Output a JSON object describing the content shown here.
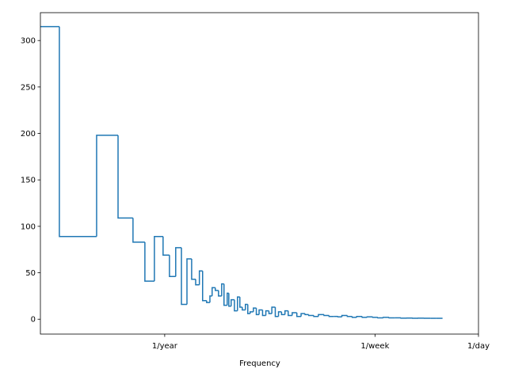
{
  "chart_data": {
    "type": "step",
    "xlabel": "Frequency",
    "color": "#1f77b4",
    "xscale": "log",
    "x": [
      0.0966,
      0.138,
      0.278,
      0.416,
      0.551,
      0.689,
      0.824,
      0.97,
      1.094,
      1.23,
      1.37,
      1.52,
      1.66,
      1.79,
      1.92,
      2.04,
      2.2,
      2.34,
      2.44,
      2.59,
      2.75,
      2.92,
      3.05,
      3.24,
      3.34,
      3.49,
      3.71,
      3.93,
      4.11,
      4.3,
      4.56,
      4.77,
      4.99,
      5.3,
      5.6,
      5.9,
      6.3,
      6.7,
      7.1,
      7.5,
      8.0,
      8.5,
      9.0,
      9.6,
      10.2,
      11,
      12,
      13,
      14,
      15,
      16.5,
      18,
      20,
      22,
      24,
      26,
      28,
      31,
      34,
      37,
      41,
      45,
      50,
      55,
      61,
      68,
      76,
      85,
      95,
      106,
      118,
      132,
      148,
      165,
      185.8
    ],
    "values": [
      315,
      89,
      198,
      109,
      83,
      41,
      89,
      69,
      46,
      77,
      16,
      65,
      43,
      37,
      52,
      20,
      18,
      25,
      34,
      31,
      25,
      38,
      15,
      28,
      14,
      21,
      9,
      24,
      13,
      10,
      16,
      6,
      8,
      12,
      5,
      10,
      4,
      9,
      6,
      13,
      3,
      8,
      5,
      9,
      4,
      7,
      3,
      6,
      5,
      4,
      3,
      5,
      4,
      3,
      3,
      2.5,
      4,
      3,
      2,
      3,
      2,
      2.5,
      2,
      1.5,
      2,
      1.5,
      1.5,
      1.2,
      1.3,
      1,
      1.2,
      1,
      1,
      1,
      1
    ],
    "xlim": [
      0.0966,
      365.2524
    ],
    "ylim": [
      -16,
      330
    ],
    "xticks": [
      {
        "value": 1,
        "label": "1/year"
      },
      {
        "value": 52.1775,
        "label": "1/week"
      },
      {
        "value": 365.2524,
        "label": "1/day"
      }
    ],
    "yticks": [
      0,
      50,
      100,
      150,
      200,
      250,
      300
    ]
  }
}
